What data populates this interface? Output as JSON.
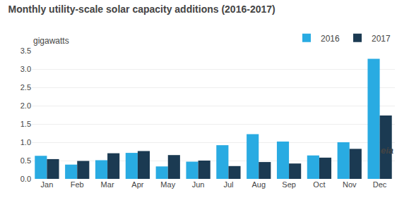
{
  "chart_data": {
    "type": "bar",
    "title": "Monthly utility-scale solar capacity additions (2016-2017)",
    "ylabel": "gigawatts",
    "annotations": [
      "eia"
    ],
    "categories": [
      "Jan",
      "Feb",
      "Mar",
      "Apr",
      "May",
      "Jun",
      "Jul",
      "Aug",
      "Sep",
      "Oct",
      "Nov",
      "Dec"
    ],
    "series": [
      {
        "name": "2016",
        "color": "#29ABE2",
        "values": [
          0.63,
          0.39,
          0.51,
          0.71,
          0.34,
          0.47,
          0.92,
          1.22,
          1.02,
          0.64,
          1.0,
          3.28
        ]
      },
      {
        "name": "2017",
        "color": "#1B3A52",
        "values": [
          0.54,
          0.49,
          0.7,
          0.76,
          0.65,
          0.5,
          0.35,
          0.46,
          0.42,
          0.58,
          0.82,
          1.73
        ]
      }
    ],
    "ylim": [
      0,
      3.5
    ],
    "yticks": [
      {
        "value": 0,
        "label": "0.0"
      },
      0.5,
      {
        "value": 1,
        "label": "1.0"
      },
      1.5,
      {
        "value": 2,
        "label": "2.0"
      },
      2.5,
      {
        "value": 3,
        "label": "3.0"
      },
      3.5
    ],
    "grid": true,
    "legend": "top-right"
  }
}
